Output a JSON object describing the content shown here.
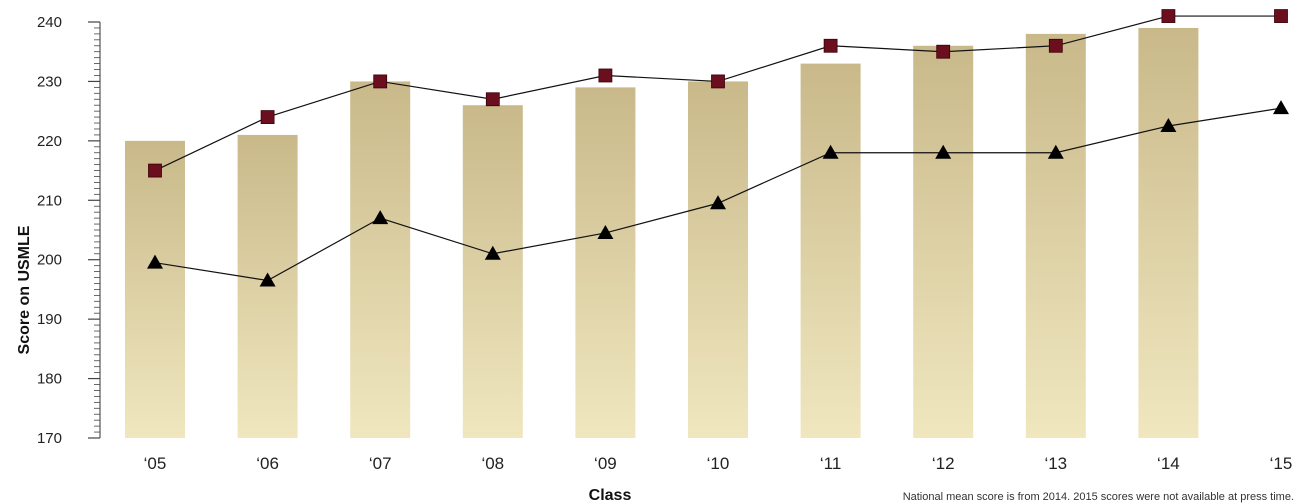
{
  "chart_data": {
    "type": "bar",
    "xlabel": "Class",
    "ylabel": "Score on USMLE",
    "ylim": [
      170,
      240
    ],
    "yticks": [
      170,
      180,
      190,
      200,
      210,
      220,
      230,
      240
    ],
    "categories": [
      "‘05",
      "‘06",
      "‘07",
      "‘08",
      "‘09",
      "‘10",
      "‘11",
      "‘12",
      "‘13",
      "‘14",
      "‘15"
    ],
    "bars": [
      220,
      221,
      230,
      226,
      229,
      230,
      233,
      236,
      238,
      239,
      null
    ],
    "series": [
      {
        "marker": "square",
        "color": "#6b0f1f",
        "values": [
          215,
          224,
          230,
          227,
          231,
          230,
          236,
          235,
          236,
          241,
          241
        ]
      },
      {
        "marker": "triangle",
        "color": "#000000",
        "values": [
          199.5,
          196.5,
          207,
          201,
          204.5,
          209.5,
          218,
          218,
          218,
          222.5,
          225.5
        ]
      }
    ],
    "bar_gradient": [
      "#c9b98a",
      "#f0e7bf"
    ],
    "grid": false,
    "note": "National mean score is from 2014. 2015 scores were not available at press time."
  }
}
